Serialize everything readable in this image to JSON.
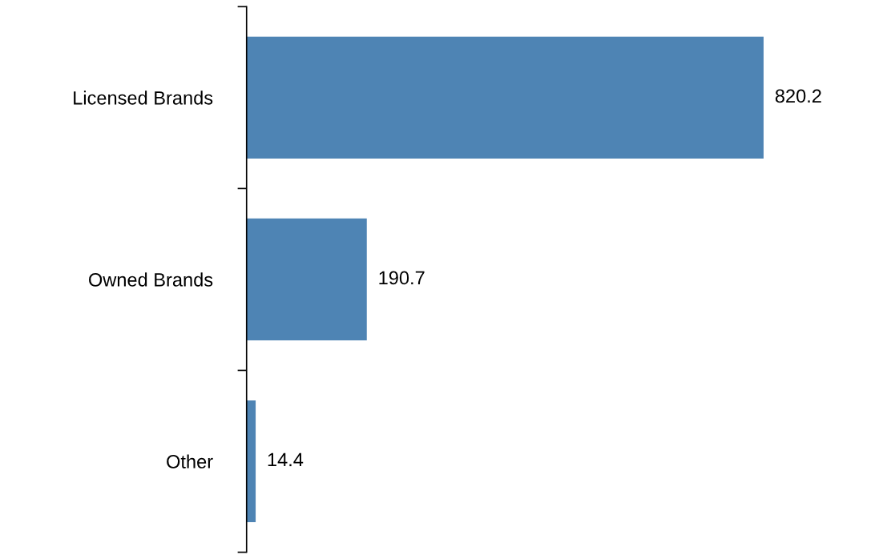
{
  "chart_data": {
    "type": "bar",
    "orientation": "horizontal",
    "categories": [
      "Licensed Brands",
      "Owned Brands",
      "Other"
    ],
    "values": [
      820.2,
      190.7,
      14.4
    ],
    "color": "#4e84b4",
    "data_labels": true
  }
}
